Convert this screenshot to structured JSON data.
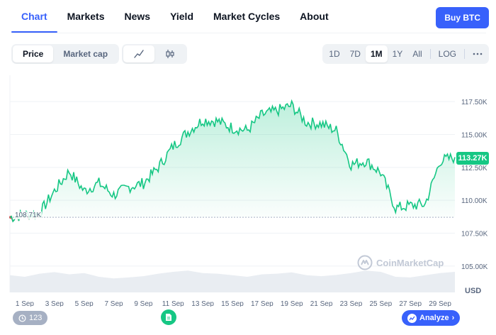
{
  "tabs": [
    {
      "label": "Chart",
      "active": true
    },
    {
      "label": "Markets"
    },
    {
      "label": "News"
    },
    {
      "label": "Yield"
    },
    {
      "label": "Market Cycles"
    },
    {
      "label": "About"
    }
  ],
  "buy_button": {
    "label": "Buy BTC"
  },
  "toolbar": {
    "chart_types": [
      {
        "label": "Price",
        "active": true
      },
      {
        "label": "Market cap"
      }
    ],
    "chart_style_icons": [
      "line-chart-icon",
      "candlestick-icon"
    ],
    "ranges": [
      {
        "label": "1D"
      },
      {
        "label": "7D"
      },
      {
        "label": "1M",
        "active": true
      },
      {
        "label": "1Y"
      },
      {
        "label": "All"
      }
    ],
    "log_label": "LOG",
    "more_icon": "more-icon"
  },
  "chart_data": {
    "type": "area",
    "x": [
      "Aug 31",
      "Sep 1",
      "Sep 2",
      "Sep 3",
      "Sep 4",
      "Sep 5",
      "Sep 6",
      "Sep 7",
      "Sep 8",
      "Sep 9",
      "Sep 10",
      "Sep 11",
      "Sep 12",
      "Sep 13",
      "Sep 14",
      "Sep 15",
      "Sep 16",
      "Sep 17",
      "Sep 18",
      "Sep 19",
      "Sep 20",
      "Sep 21",
      "Sep 22",
      "Sep 23",
      "Sep 24",
      "Sep 25",
      "Sep 26",
      "Sep 27",
      "Sep 28",
      "Sep 29",
      "Sep 30"
    ],
    "series": [
      {
        "values": [
          108.7,
          108.9,
          109.0,
          110.7,
          112.2,
          110.7,
          111.3,
          110.4,
          111.0,
          111.3,
          112.5,
          114.1,
          115.2,
          116.1,
          116.0,
          115.5,
          115.3,
          116.5,
          116.8,
          117.2,
          115.9,
          115.8,
          115.3,
          112.7,
          113.0,
          112.1,
          109.4,
          109.6,
          109.7,
          113.0,
          113.27
        ]
      }
    ],
    "x_tick_labels": [
      "1 Sep",
      "3 Sep",
      "5 Sep",
      "7 Sep",
      "9 Sep",
      "11 Sep",
      "13 Sep",
      "15 Sep",
      "17 Sep",
      "19 Sep",
      "21 Sep",
      "23 Sep",
      "25 Sep",
      "27 Sep",
      "29 Sep"
    ],
    "y_tick_values": [
      117.5,
      115.0,
      112.5,
      110.0,
      107.5,
      105.0
    ],
    "y_tick_labels": [
      "117.50K",
      "115.00K",
      "112.50K",
      "110.00K",
      "107.50K",
      "105.00K"
    ],
    "ylim": [
      103.0,
      119.5
    ],
    "open_price": 108.71,
    "open_label": "108.71K",
    "current_price_label": "113.27K",
    "currency_label": "USD",
    "volume": [
      0.55,
      0.5,
      0.6,
      0.65,
      0.58,
      0.62,
      0.5,
      0.45,
      0.48,
      0.52,
      0.6,
      0.66,
      0.7,
      0.62,
      0.6,
      0.55,
      0.5,
      0.58,
      0.6,
      0.64,
      0.55,
      0.52,
      0.56,
      0.62,
      0.7,
      0.66,
      0.5,
      0.48,
      0.55,
      0.62,
      0.66
    ],
    "colors": {
      "up": "#16c784",
      "down": "#ea3943",
      "grid": "#eff2f5"
    }
  },
  "watermark": {
    "text": "CoinMarketCap"
  },
  "overlays": {
    "events_count": "123",
    "analyze_label": "Analyze"
  }
}
